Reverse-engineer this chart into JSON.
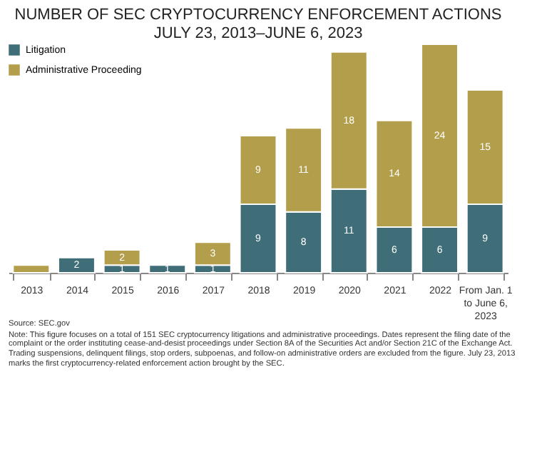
{
  "chart_data": {
    "type": "bar",
    "title": "NUMBER OF SEC CRYPTOCURRENCY ENFORCEMENT ACTIONS\nJULY 23, 2013–JUNE 6, 2023",
    "stacked": true,
    "legend": "top left",
    "categories": [
      "2013",
      "2014",
      "2015",
      "2016",
      "2017",
      "2018",
      "2019",
      "2020",
      "2021",
      "2022",
      "From Jan. 1 to June 6, 2023"
    ],
    "series": [
      {
        "name": "Litigation",
        "color": "#3f6e78",
        "values": [
          null,
          2,
          1,
          1,
          1,
          9,
          8,
          11,
          6,
          6,
          9
        ],
        "value_labels": [
          null,
          "2",
          "1",
          "1",
          "1",
          "9",
          "8",
          "11",
          "6",
          "6",
          "9"
        ]
      },
      {
        "name": "Administrative Proceeding",
        "color": "#b39e4b",
        "values": [
          1,
          null,
          2,
          null,
          3,
          9,
          11,
          18,
          14,
          24,
          15
        ],
        "value_labels": [
          null,
          null,
          "2",
          null,
          "3",
          "9",
          "11",
          "18",
          "14",
          "24",
          "15"
        ]
      }
    ],
    "annotations": [
      "Source: SEC.gov",
      "Note: This figure focuses on a total of 151 SEC cryptocurrency litigations and administrative proceedings. Dates represent the filing date of the complaint or the order instituting cease-and-desist proceedings under Section 8A of the Securities Act and/or Section 21C of the Exchange Act. Trading suspensions, delinquent filings, stop orders, subpoenas, and follow-on administrative orders are excluded from the figure. July 23, 2013 marks the first cryptocurrency-related enforcement action brought by the SEC."
    ]
  }
}
